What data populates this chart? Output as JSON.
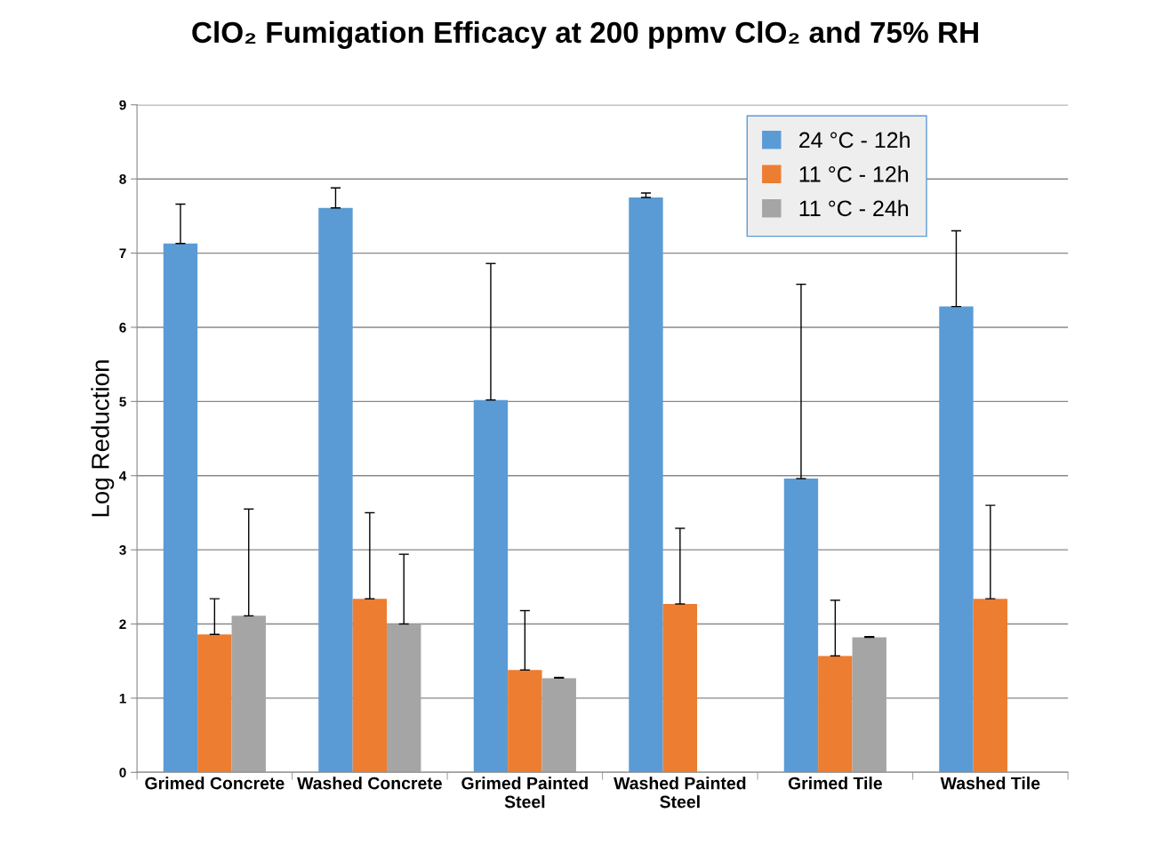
{
  "chart_data": {
    "type": "bar",
    "title": "ClO₂ Fumigation Efficacy at 200 ppmv ClO₂ and 75% RH",
    "ylabel": "Log Reduction",
    "categories": [
      "Grimed Concrete",
      "Washed Concrete",
      "Grimed Painted\nSteel",
      "Washed Painted\nSteel",
      "Grimed Tile",
      "Washed Tile"
    ],
    "series": [
      {
        "name": "24 °C - 12h",
        "color": "#5b9bd5",
        "values": [
          7.13,
          7.61,
          5.02,
          7.75,
          3.96,
          6.28
        ],
        "errors": [
          [
            7.13,
            7.66
          ],
          [
            7.61,
            7.88
          ],
          [
            5.02,
            6.86
          ],
          [
            7.75,
            7.81
          ],
          [
            3.96,
            6.58
          ],
          [
            6.28,
            7.3
          ]
        ]
      },
      {
        "name": "11 °C - 12h",
        "color": "#ed7d31",
        "values": [
          1.86,
          2.34,
          1.38,
          2.27,
          1.57,
          2.34
        ],
        "errors": [
          [
            1.86,
            2.34
          ],
          [
            2.34,
            3.5
          ],
          [
            1.38,
            2.18
          ],
          [
            2.27,
            3.29
          ],
          [
            1.57,
            2.32
          ],
          [
            2.34,
            3.6
          ]
        ]
      },
      {
        "name": "11 °C - 24h",
        "color": "#a5a5a5",
        "values": [
          2.11,
          2.0,
          1.27,
          null,
          1.82,
          null
        ],
        "errors": [
          [
            2.11,
            3.55
          ],
          [
            2.0,
            2.94
          ],
          [
            1.27,
            1.28
          ],
          null,
          [
            1.82,
            1.83
          ],
          null
        ]
      }
    ],
    "ylim": [
      0,
      9
    ],
    "yticks": [
      0,
      1,
      2,
      3,
      4,
      5,
      6,
      7,
      8,
      9
    ],
    "grid": "y",
    "legend": "top right"
  }
}
